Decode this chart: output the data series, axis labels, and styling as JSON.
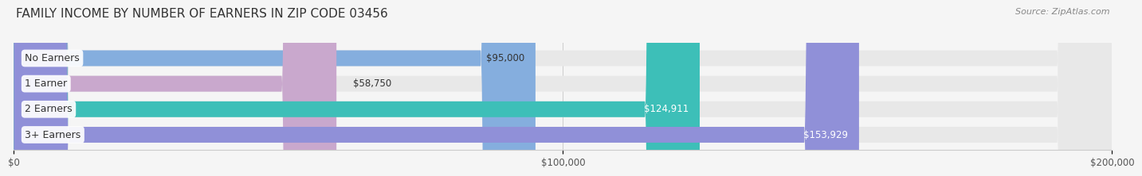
{
  "title": "FAMILY INCOME BY NUMBER OF EARNERS IN ZIP CODE 03456",
  "source": "Source: ZipAtlas.com",
  "categories": [
    "No Earners",
    "1 Earner",
    "2 Earners",
    "3+ Earners"
  ],
  "values": [
    95000,
    58750,
    124911,
    153929
  ],
  "bar_colors": [
    "#85aede",
    "#c9a8cd",
    "#3dbfb8",
    "#9090d8"
  ],
  "label_colors": [
    "#333333",
    "#333333",
    "#ffffff",
    "#ffffff"
  ],
  "bar_bg_color": "#e8e8e8",
  "background_color": "#f5f5f5",
  "xlim": [
    0,
    200000
  ],
  "xticks": [
    0,
    100000,
    200000
  ],
  "xtick_labels": [
    "$0",
    "$100,000",
    "$200,000"
  ],
  "value_labels": [
    "$95,000",
    "$58,750",
    "$124,911",
    "$153,929"
  ],
  "title_fontsize": 11,
  "source_fontsize": 8,
  "bar_label_fontsize": 9,
  "value_fontsize": 8.5,
  "bar_height": 0.62
}
